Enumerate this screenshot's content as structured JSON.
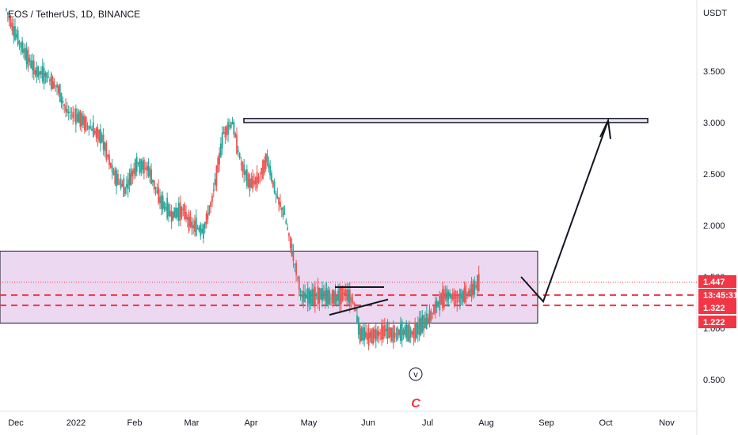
{
  "header": {
    "title": "EOS / TetherUS, 1D, BINANCE"
  },
  "axis": {
    "currency": "USDT"
  },
  "chart_data": {
    "type": "candlestick",
    "symbol": "EOS / TetherUS",
    "interval": "1D",
    "exchange": "BINANCE",
    "y_ticks": [
      "3.500",
      "3.000",
      "2.500",
      "2.000",
      "1.500",
      "1.000",
      "0.500"
    ],
    "y_tick_values": [
      3.5,
      3.0,
      2.5,
      2.0,
      1.5,
      1.0,
      0.5
    ],
    "x_ticks": [
      "Dec",
      "2022",
      "Feb",
      "Mar",
      "Apr",
      "May",
      "Jun",
      "Jul",
      "Aug",
      "Sep",
      "Oct",
      "Nov"
    ],
    "price_tags": [
      {
        "label": "1.447",
        "value": 1.447,
        "color": "#f23645"
      },
      {
        "label": "13:45:31",
        "value": 1.39,
        "color": "#f23645"
      },
      {
        "label": "1.322",
        "value": 1.322,
        "color": "#f23645"
      },
      {
        "label": "1.222",
        "value": 1.222,
        "color": "#f23645"
      }
    ],
    "series_path": [
      [
        0,
        4.1
      ],
      [
        5,
        3.9
      ],
      [
        12,
        3.7
      ],
      [
        20,
        3.5
      ],
      [
        28,
        3.45
      ],
      [
        35,
        3.35
      ],
      [
        42,
        3.1
      ],
      [
        50,
        3.05
      ],
      [
        58,
        2.95
      ],
      [
        66,
        2.85
      ],
      [
        74,
        2.5
      ],
      [
        82,
        2.35
      ],
      [
        90,
        2.6
      ],
      [
        98,
        2.55
      ],
      [
        106,
        2.25
      ],
      [
        114,
        2.1
      ],
      [
        122,
        2.15
      ],
      [
        128,
        2.0
      ],
      [
        136,
        1.95
      ],
      [
        142,
        2.25
      ],
      [
        150,
        2.9
      ],
      [
        156,
        3.0
      ],
      [
        162,
        2.6
      ],
      [
        168,
        2.4
      ],
      [
        174,
        2.45
      ],
      [
        180,
        2.65
      ],
      [
        186,
        2.3
      ],
      [
        192,
        2.1
      ],
      [
        198,
        1.7
      ],
      [
        204,
        1.3
      ],
      [
        210,
        1.3
      ],
      [
        216,
        1.33
      ],
      [
        222,
        1.3
      ],
      [
        228,
        1.3
      ],
      [
        234,
        1.35
      ],
      [
        240,
        1.25
      ],
      [
        244,
        0.95
      ],
      [
        250,
        0.92
      ],
      [
        256,
        0.95
      ],
      [
        262,
        0.98
      ],
      [
        268,
        0.93
      ],
      [
        274,
        0.97
      ],
      [
        280,
        0.95
      ],
      [
        286,
        1.02
      ],
      [
        292,
        1.1
      ],
      [
        298,
        1.25
      ],
      [
        304,
        1.33
      ],
      [
        310,
        1.3
      ],
      [
        316,
        1.32
      ],
      [
        322,
        1.38
      ],
      [
        326,
        1.447
      ]
    ],
    "series_x_max": 460,
    "pink_zone": {
      "low": 1.05,
      "high": 1.75
    },
    "target_box": {
      "low": 3.0,
      "high": 3.04
    },
    "support_lines": [
      1.322,
      1.222
    ],
    "current_price": 1.447,
    "wave_labels": [
      "v",
      "C"
    ],
    "colors": {
      "up": "#26a69a",
      "down": "#ef5350",
      "zone": "#e1bee7",
      "tag": "#f23645"
    }
  }
}
